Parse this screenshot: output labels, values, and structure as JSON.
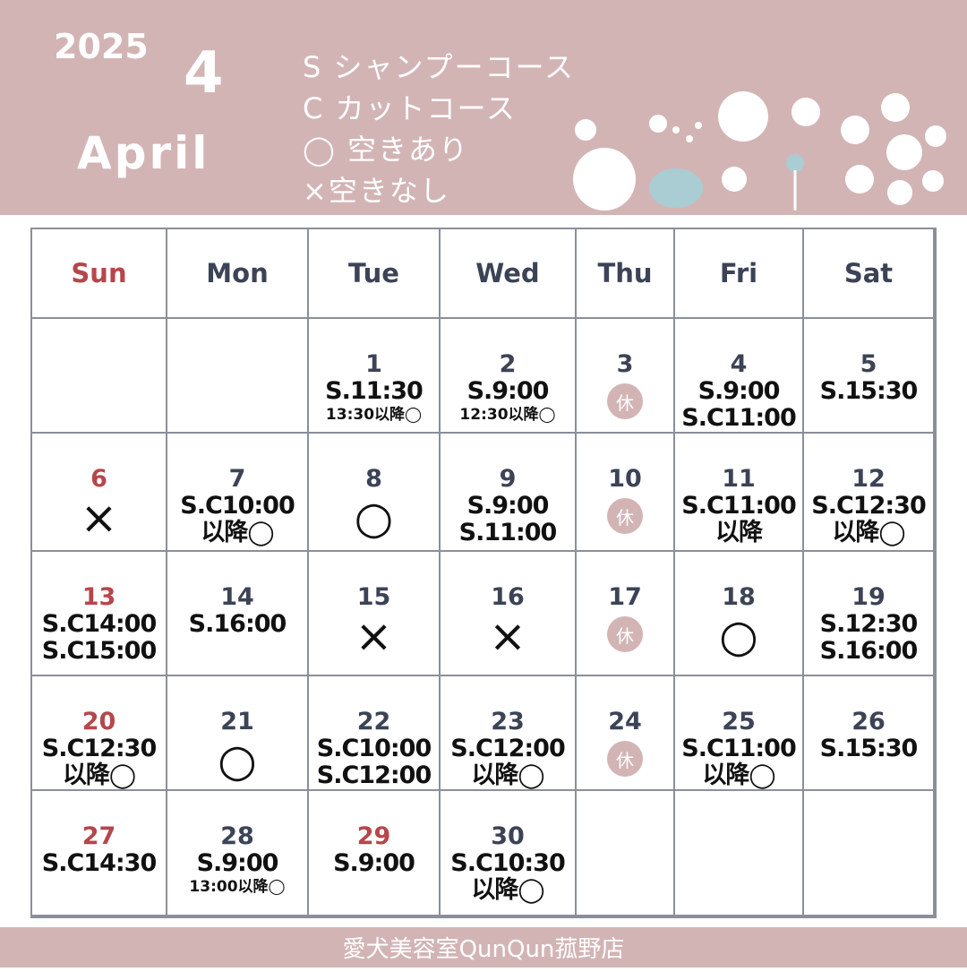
{
  "header": {
    "year": "2025",
    "month": "4",
    "month_name": "April",
    "legend": [
      "S シャンプーコース",
      "C カットコース",
      "◯ 空きあり",
      "×空きなし"
    ]
  },
  "weekdays": [
    "Sun",
    "Mon",
    "Tue",
    "Wed",
    "Thu",
    "Fri",
    "Sat"
  ],
  "weeks": [
    [
      null,
      null,
      {
        "day": "1",
        "lines": [
          "S.11:30"
        ],
        "notes": [
          "13:30以降◯"
        ]
      },
      {
        "day": "2",
        "lines": [
          "S.9:00"
        ],
        "notes": [
          "12:30以降◯"
        ]
      },
      {
        "day": "3",
        "holiday": "休"
      },
      {
        "day": "4",
        "lines": [
          "S.9:00",
          "S.C11:00"
        ]
      },
      {
        "day": "5",
        "lines": [
          "S.15:30"
        ]
      }
    ],
    [
      {
        "day": "6",
        "day_color": "#b5474b",
        "mark": "×"
      },
      {
        "day": "7",
        "lines": [
          "S.C10:00",
          "以降◯"
        ]
      },
      {
        "day": "8",
        "mark": "○"
      },
      {
        "day": "9",
        "lines": [
          "S.9:00",
          "S.11:00"
        ]
      },
      {
        "day": "10",
        "holiday": "休"
      },
      {
        "day": "11",
        "lines": [
          "S.C11:00",
          "以降"
        ]
      },
      {
        "day": "12",
        "lines": [
          "S.C12:30",
          "以降◯"
        ]
      }
    ],
    [
      {
        "day": "13",
        "day_color": "#b5474b",
        "lines": [
          "S.C14:00",
          "S.C15:00"
        ]
      },
      {
        "day": "14",
        "lines": [
          "S.16:00"
        ]
      },
      {
        "day": "15",
        "mark": "×"
      },
      {
        "day": "16",
        "mark": "×"
      },
      {
        "day": "17",
        "holiday": "休"
      },
      {
        "day": "18",
        "mark": "○"
      },
      {
        "day": "19",
        "lines": [
          "S.12:30",
          "S.16:00"
        ]
      }
    ],
    [
      {
        "day": "20",
        "day_color": "#b5474b",
        "lines": [
          "S.C12:30",
          "以降◯"
        ]
      },
      {
        "day": "21",
        "mark": "○"
      },
      {
        "day": "22",
        "lines": [
          "S.C10:00",
          "S.C12:00"
        ]
      },
      {
        "day": "23",
        "lines": [
          "S.C12:00",
          "以降◯"
        ]
      },
      {
        "day": "24",
        "holiday": "休"
      },
      {
        "day": "25",
        "lines": [
          "S.C11:00",
          "以降◯"
        ]
      },
      {
        "day": "26",
        "lines": [
          "S.15:30"
        ]
      }
    ],
    [
      {
        "day": "27",
        "day_color": "#b5474b",
        "lines": [
          "S.C14:30"
        ]
      },
      {
        "day": "28",
        "lines": [
          "S.9:00"
        ],
        "notes": [
          "13:00以降◯"
        ]
      },
      {
        "day": "29",
        "day_color": "#b5474b",
        "lines": [
          "S.9:00"
        ]
      },
      {
        "day": "30",
        "lines": [
          "S.C10:30",
          "以降◯"
        ]
      },
      null,
      null,
      null
    ]
  ],
  "footer": "愛犬美容室QunQun菰野店"
}
